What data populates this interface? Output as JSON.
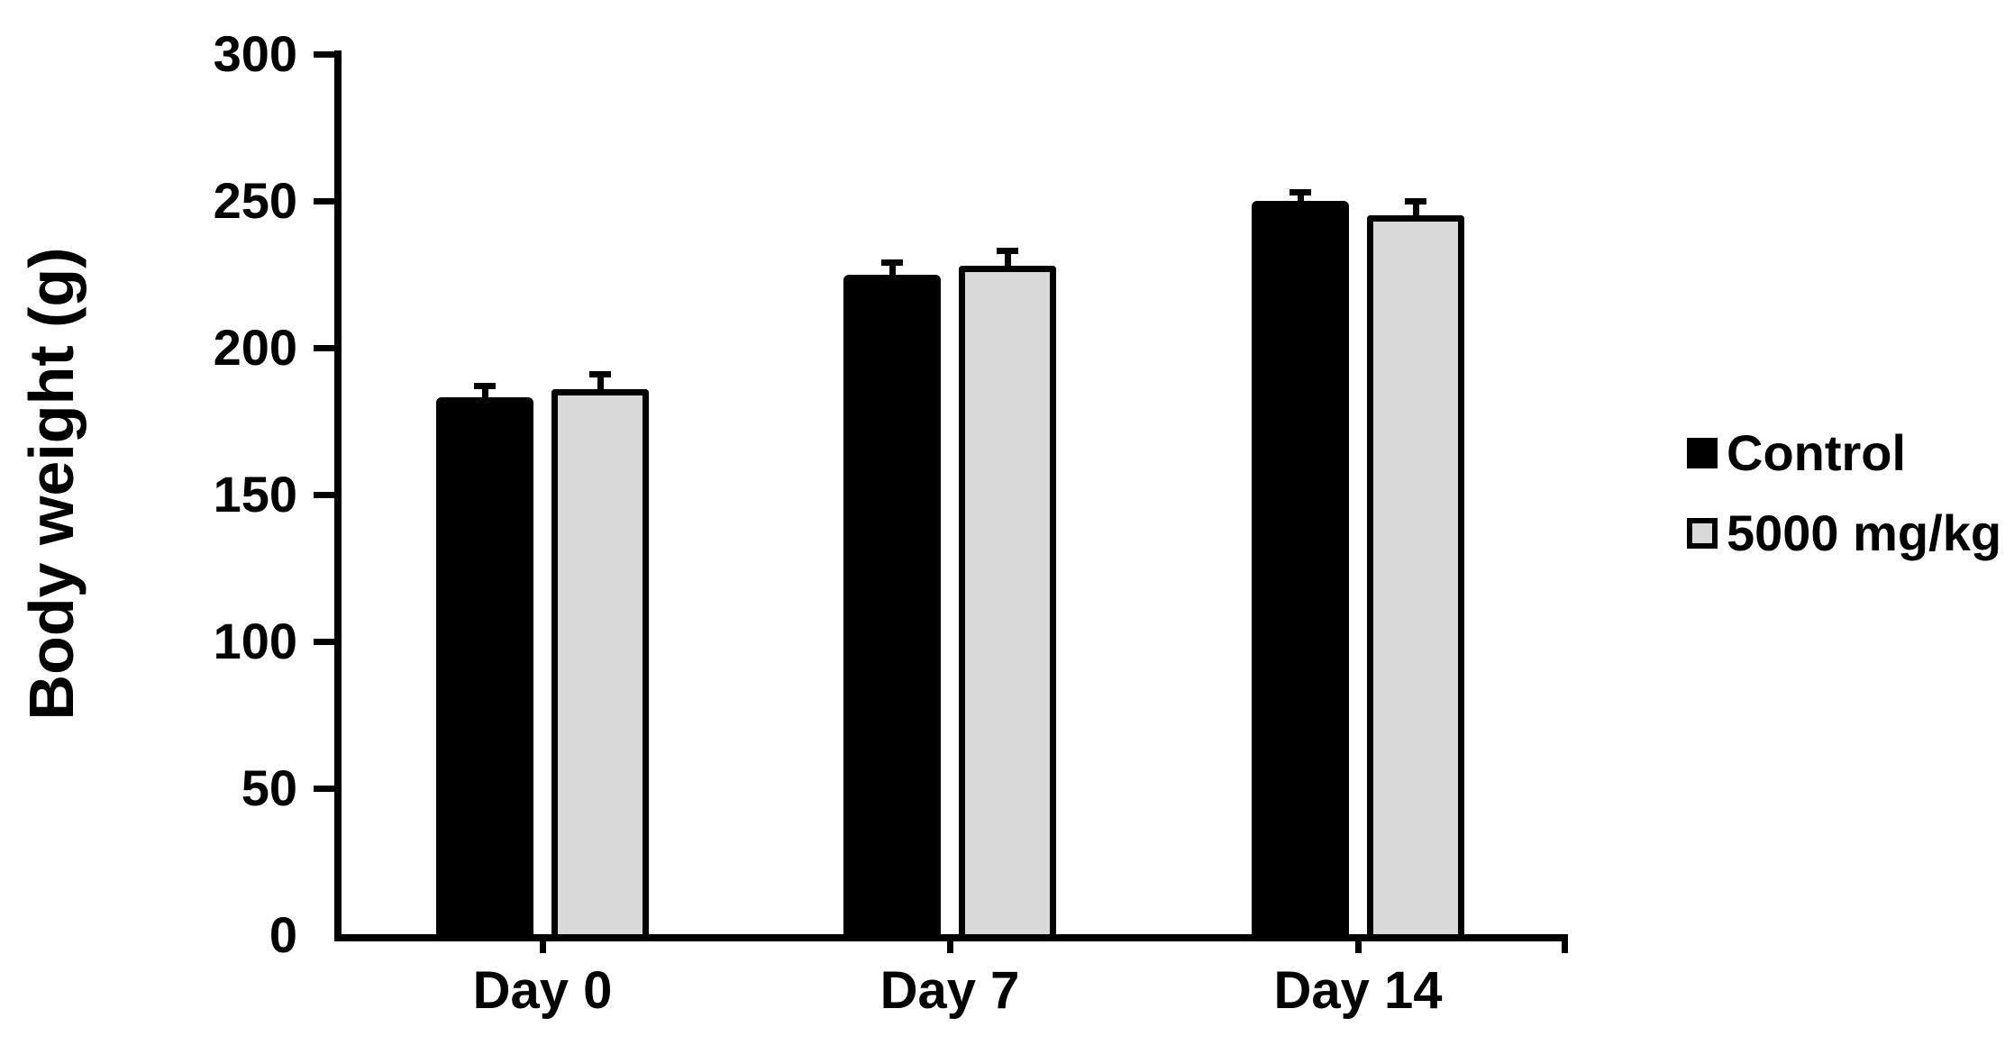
{
  "chart_data": {
    "type": "bar",
    "title": "",
    "ylabel": "Body weight (g)",
    "xlabel": "",
    "categories": [
      "Day 0",
      "Day 7",
      "Day 14"
    ],
    "ylim": [
      0,
      300
    ],
    "ytick_step": 50,
    "ytick_labels": [
      "0",
      "50",
      "100",
      "150",
      "200",
      "250",
      "300"
    ],
    "grid": false,
    "legend_position": "right",
    "error_bars": "upper only",
    "series": [
      {
        "name": "Control",
        "fill": "#000000",
        "border": "#000000",
        "values": [
          183,
          225,
          250
        ],
        "errors": [
          5,
          5,
          4
        ]
      },
      {
        "name": "5000 mg/kg",
        "fill": "#d9d9d9",
        "border": "#000000",
        "values": [
          186,
          228,
          245
        ],
        "errors": [
          6,
          6,
          6
        ]
      }
    ]
  },
  "colors": {
    "axis": "#000000",
    "background": "#ffffff",
    "text": "#000000"
  }
}
